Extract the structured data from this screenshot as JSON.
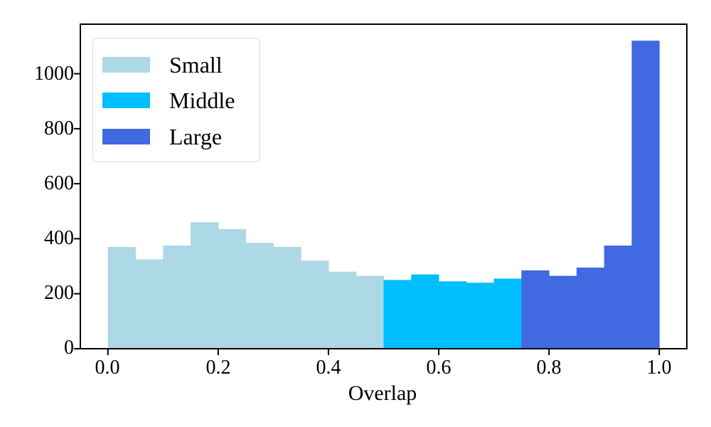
{
  "chart_data": {
    "type": "bar",
    "subtype": "histogram",
    "title": "",
    "xlabel": "Overlap",
    "ylabel": "",
    "bin_start": 0.0,
    "bin_width": 0.05,
    "series": [
      {
        "name": "Small",
        "color": "#ADD8E6",
        "bin_range": [
          0.0,
          0.5
        ],
        "values": [
          370,
          325,
          375,
          460,
          435,
          385,
          370,
          320,
          280,
          265
        ]
      },
      {
        "name": "Middle",
        "color": "#00BFFF",
        "bin_range": [
          0.5,
          0.75
        ],
        "values": [
          250,
          270,
          245,
          240,
          255
        ]
      },
      {
        "name": "Large",
        "color": "#4169E1",
        "bin_range": [
          0.75,
          1.0
        ],
        "values": [
          285,
          265,
          295,
          375,
          1120
        ]
      }
    ],
    "x_tick_labels": [
      "0.0",
      "0.2",
      "0.4",
      "0.6",
      "0.8",
      "1.0"
    ],
    "x_tick_values": [
      0.0,
      0.2,
      0.4,
      0.6,
      0.8,
      1.0
    ],
    "y_tick_labels": [
      "0",
      "200",
      "400",
      "600",
      "800",
      "1000"
    ],
    "y_tick_values": [
      0,
      200,
      400,
      600,
      800,
      1000
    ],
    "xlim": [
      -0.05,
      1.05
    ],
    "ylim": [
      0,
      1180
    ],
    "grid": false,
    "legend_position": "upper left",
    "axis_color": "#000000",
    "background_color": "#ffffff"
  }
}
